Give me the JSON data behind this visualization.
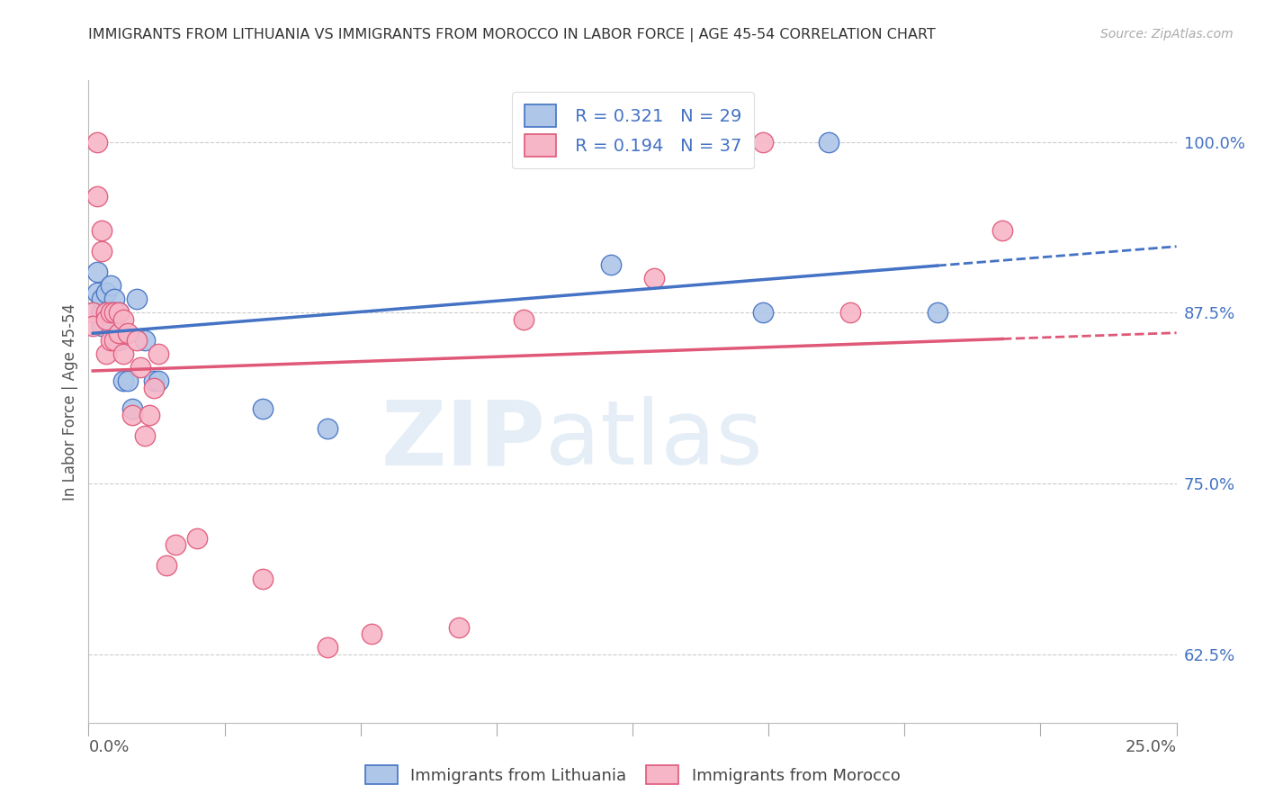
{
  "title": "IMMIGRANTS FROM LITHUANIA VS IMMIGRANTS FROM MOROCCO IN LABOR FORCE | AGE 45-54 CORRELATION CHART",
  "source": "Source: ZipAtlas.com",
  "ylabel": "In Labor Force | Age 45-54",
  "yticks": [
    0.625,
    0.75,
    0.875,
    1.0
  ],
  "ytick_labels": [
    "62.5%",
    "75.0%",
    "87.5%",
    "100.0%"
  ],
  "xlim": [
    0.0,
    0.25
  ],
  "ylim": [
    0.575,
    1.045
  ],
  "legend_r1": "R = 0.321",
  "legend_n1": "N = 29",
  "legend_r2": "R = 0.194",
  "legend_n2": "N = 37",
  "label1": "Immigrants from Lithuania",
  "label2": "Immigrants from Morocco",
  "color1": "#aec6e8",
  "color2": "#f7b6c8",
  "line_color1": "#4472c4",
  "line_color2": "#e05878",
  "lithuania_x": [
    0.001,
    0.002,
    0.002,
    0.003,
    0.003,
    0.003,
    0.004,
    0.004,
    0.004,
    0.005,
    0.005,
    0.005,
    0.006,
    0.006,
    0.007,
    0.007,
    0.008,
    0.009,
    0.01,
    0.011,
    0.013,
    0.015,
    0.016,
    0.04,
    0.055,
    0.12,
    0.155,
    0.17,
    0.195
  ],
  "lithuania_y": [
    0.875,
    0.89,
    0.905,
    0.875,
    0.885,
    0.865,
    0.89,
    0.875,
    0.87,
    0.895,
    0.875,
    0.865,
    0.885,
    0.875,
    0.875,
    0.855,
    0.825,
    0.825,
    0.805,
    0.885,
    0.855,
    0.825,
    0.825,
    0.805,
    0.79,
    0.91,
    0.875,
    1.0,
    0.875
  ],
  "morocco_x": [
    0.001,
    0.001,
    0.002,
    0.002,
    0.003,
    0.003,
    0.004,
    0.004,
    0.004,
    0.005,
    0.005,
    0.006,
    0.006,
    0.007,
    0.007,
    0.008,
    0.008,
    0.009,
    0.01,
    0.011,
    0.012,
    0.013,
    0.014,
    0.015,
    0.016,
    0.018,
    0.02,
    0.025,
    0.04,
    0.055,
    0.065,
    0.085,
    0.1,
    0.13,
    0.155,
    0.175,
    0.21
  ],
  "morocco_y": [
    0.875,
    0.865,
    1.0,
    0.96,
    0.935,
    0.92,
    0.875,
    0.87,
    0.845,
    0.875,
    0.855,
    0.875,
    0.855,
    0.875,
    0.86,
    0.87,
    0.845,
    0.86,
    0.8,
    0.855,
    0.835,
    0.785,
    0.8,
    0.82,
    0.845,
    0.69,
    0.705,
    0.71,
    0.68,
    0.63,
    0.64,
    0.645,
    0.87,
    0.9,
    1.0,
    0.875,
    0.935
  ]
}
